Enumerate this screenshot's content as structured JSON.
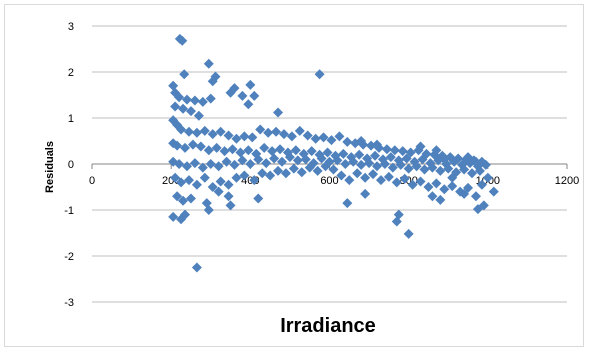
{
  "chart_data": {
    "type": "scatter",
    "xlabel": "Irradiance",
    "ylabel": "Residuals",
    "xlim": [
      0,
      1200
    ],
    "ylim": [
      -3,
      3
    ],
    "xticks": [
      0,
      200,
      400,
      600,
      800,
      1000,
      1200
    ],
    "yticks": [
      -3,
      -2,
      -1,
      0,
      1,
      2,
      3
    ],
    "grid": {
      "horizontal": true,
      "vertical": false
    },
    "marker": {
      "shape": "diamond",
      "color": "#4f81bd"
    },
    "points": [
      [
        222,
        2.72
      ],
      [
        228,
        2.68
      ],
      [
        295,
        2.18
      ],
      [
        233,
        1.95
      ],
      [
        312,
        1.9
      ],
      [
        305,
        1.8
      ],
      [
        400,
        1.72
      ],
      [
        360,
        1.65
      ],
      [
        575,
        1.95
      ],
      [
        205,
        1.7
      ],
      [
        210,
        1.55
      ],
      [
        220,
        1.45
      ],
      [
        240,
        1.4
      ],
      [
        260,
        1.38
      ],
      [
        280,
        1.35
      ],
      [
        300,
        1.42
      ],
      [
        350,
        1.55
      ],
      [
        380,
        1.48
      ],
      [
        395,
        1.3
      ],
      [
        410,
        1.48
      ],
      [
        210,
        1.25
      ],
      [
        230,
        1.2
      ],
      [
        250,
        1.15
      ],
      [
        270,
        1.05
      ],
      [
        470,
        1.12
      ],
      [
        205,
        0.95
      ],
      [
        215,
        0.85
      ],
      [
        225,
        0.75
      ],
      [
        245,
        0.7
      ],
      [
        265,
        0.68
      ],
      [
        285,
        0.72
      ],
      [
        305,
        0.65
      ],
      [
        325,
        0.7
      ],
      [
        345,
        0.62
      ],
      [
        365,
        0.55
      ],
      [
        385,
        0.6
      ],
      [
        405,
        0.58
      ],
      [
        425,
        0.75
      ],
      [
        445,
        0.68
      ],
      [
        465,
        0.7
      ],
      [
        485,
        0.65
      ],
      [
        505,
        0.6
      ],
      [
        525,
        0.72
      ],
      [
        545,
        0.62
      ],
      [
        565,
        0.55
      ],
      [
        585,
        0.58
      ],
      [
        605,
        0.52
      ],
      [
        625,
        0.6
      ],
      [
        645,
        0.48
      ],
      [
        665,
        0.45
      ],
      [
        685,
        0.42
      ],
      [
        705,
        0.4
      ],
      [
        725,
        0.35
      ],
      [
        745,
        0.32
      ],
      [
        765,
        0.3
      ],
      [
        785,
        0.28
      ],
      [
        805,
        0.25
      ],
      [
        825,
        0.3
      ],
      [
        845,
        0.22
      ],
      [
        865,
        0.2
      ],
      [
        885,
        0.18
      ],
      [
        905,
        0.15
      ],
      [
        925,
        0.12
      ],
      [
        945,
        0.1
      ],
      [
        965,
        0.08
      ],
      [
        985,
        0.05
      ],
      [
        205,
        0.45
      ],
      [
        215,
        0.4
      ],
      [
        235,
        0.35
      ],
      [
        255,
        0.42
      ],
      [
        275,
        0.38
      ],
      [
        295,
        0.3
      ],
      [
        315,
        0.35
      ],
      [
        335,
        0.28
      ],
      [
        355,
        0.32
      ],
      [
        375,
        0.25
      ],
      [
        395,
        0.3
      ],
      [
        415,
        0.22
      ],
      [
        435,
        0.35
      ],
      [
        455,
        0.28
      ],
      [
        475,
        0.32
      ],
      [
        495,
        0.25
      ],
      [
        515,
        0.3
      ],
      [
        535,
        0.22
      ],
      [
        555,
        0.28
      ],
      [
        575,
        0.2
      ],
      [
        595,
        0.25
      ],
      [
        615,
        0.18
      ],
      [
        635,
        0.22
      ],
      [
        655,
        0.15
      ],
      [
        675,
        0.2
      ],
      [
        695,
        0.12
      ],
      [
        715,
        0.18
      ],
      [
        735,
        0.1
      ],
      [
        755,
        0.15
      ],
      [
        775,
        0.08
      ],
      [
        795,
        0.12
      ],
      [
        815,
        0.05
      ],
      [
        835,
        0.1
      ],
      [
        855,
        0.02
      ],
      [
        875,
        0.08
      ],
      [
        895,
        0.0
      ],
      [
        915,
        0.05
      ],
      [
        935,
        -0.02
      ],
      [
        955,
        0.02
      ],
      [
        975,
        -0.05
      ],
      [
        995,
        -0.02
      ],
      [
        205,
        0.05
      ],
      [
        220,
        0.0
      ],
      [
        240,
        -0.05
      ],
      [
        260,
        0.02
      ],
      [
        280,
        -0.08
      ],
      [
        300,
        0.0
      ],
      [
        320,
        -0.05
      ],
      [
        340,
        0.05
      ],
      [
        360,
        -0.02
      ],
      [
        380,
        0.08
      ],
      [
        400,
        0.0
      ],
      [
        420,
        0.1
      ],
      [
        440,
        0.02
      ],
      [
        460,
        0.12
      ],
      [
        480,
        0.05
      ],
      [
        500,
        0.15
      ],
      [
        520,
        0.08
      ],
      [
        540,
        0.1
      ],
      [
        560,
        0.02
      ],
      [
        580,
        0.12
      ],
      [
        600,
        0.05
      ],
      [
        620,
        0.08
      ],
      [
        640,
        0.0
      ],
      [
        660,
        0.05
      ],
      [
        680,
        -0.02
      ],
      [
        700,
        0.02
      ],
      [
        720,
        -0.05
      ],
      [
        740,
        0.0
      ],
      [
        760,
        -0.08
      ],
      [
        780,
        -0.02
      ],
      [
        800,
        -0.1
      ],
      [
        820,
        -0.05
      ],
      [
        840,
        -0.12
      ],
      [
        860,
        -0.08
      ],
      [
        880,
        -0.15
      ],
      [
        900,
        -0.1
      ],
      [
        920,
        -0.18
      ],
      [
        940,
        -0.12
      ],
      [
        960,
        -0.2
      ],
      [
        980,
        -0.15
      ],
      [
        1000,
        -0.3
      ],
      [
        1015,
        -0.6
      ],
      [
        985,
        -0.45
      ],
      [
        210,
        -0.3
      ],
      [
        225,
        -0.4
      ],
      [
        245,
        -0.35
      ],
      [
        265,
        -0.45
      ],
      [
        285,
        -0.3
      ],
      [
        305,
        -0.5
      ],
      [
        325,
        -0.38
      ],
      [
        345,
        -0.45
      ],
      [
        365,
        -0.3
      ],
      [
        385,
        -0.25
      ],
      [
        410,
        -0.35
      ],
      [
        430,
        -0.2
      ],
      [
        450,
        -0.25
      ],
      [
        470,
        -0.15
      ],
      [
        490,
        -0.2
      ],
      [
        510,
        -0.1
      ],
      [
        530,
        -0.18
      ],
      [
        550,
        -0.08
      ],
      [
        570,
        -0.15
      ],
      [
        590,
        -0.05
      ],
      [
        610,
        -0.12
      ],
      [
        630,
        -0.25
      ],
      [
        650,
        -0.35
      ],
      [
        670,
        -0.2
      ],
      [
        690,
        -0.3
      ],
      [
        710,
        -0.22
      ],
      [
        730,
        -0.35
      ],
      [
        750,
        -0.28
      ],
      [
        770,
        -0.4
      ],
      [
        790,
        -0.32
      ],
      [
        810,
        -0.45
      ],
      [
        830,
        -0.38
      ],
      [
        850,
        -0.5
      ],
      [
        870,
        -0.42
      ],
      [
        890,
        -0.55
      ],
      [
        910,
        -0.48
      ],
      [
        930,
        -0.6
      ],
      [
        950,
        -0.52
      ],
      [
        970,
        -0.7
      ],
      [
        975,
        -0.98
      ],
      [
        990,
        -0.9
      ],
      [
        215,
        -0.7
      ],
      [
        230,
        -0.8
      ],
      [
        250,
        -0.75
      ],
      [
        290,
        -0.85
      ],
      [
        295,
        -1.0
      ],
      [
        320,
        -0.6
      ],
      [
        345,
        -0.7
      ],
      [
        350,
        -0.9
      ],
      [
        420,
        -0.75
      ],
      [
        205,
        -1.15
      ],
      [
        225,
        -1.2
      ],
      [
        235,
        -1.1
      ],
      [
        265,
        -2.25
      ],
      [
        645,
        -0.85
      ],
      [
        775,
        -1.1
      ],
      [
        770,
        -1.25
      ],
      [
        800,
        -1.52
      ],
      [
        690,
        -0.65
      ],
      [
        860,
        -0.7
      ],
      [
        880,
        -0.78
      ],
      [
        940,
        -0.65
      ],
      [
        910,
        -0.3
      ],
      [
        870,
        0.3
      ],
      [
        890,
        0.1
      ],
      [
        950,
        0.15
      ],
      [
        970,
        0.05
      ],
      [
        830,
        0.38
      ],
      [
        720,
        0.42
      ],
      [
        680,
        0.5
      ]
    ]
  }
}
